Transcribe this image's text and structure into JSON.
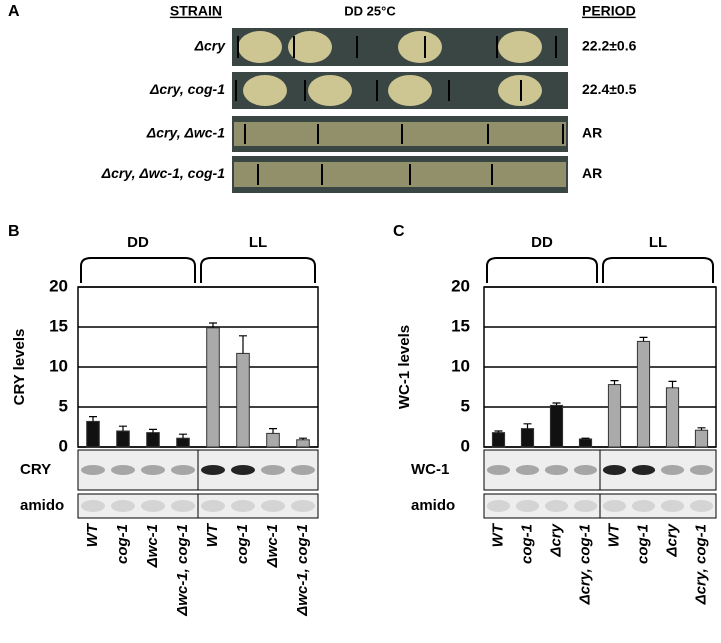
{
  "panel_a": {
    "letter": "A",
    "headers": [
      "STRAIN",
      "DD 25°C",
      "PERIOD"
    ],
    "rows": [
      {
        "strain": "Δcry",
        "period": "22.2±0.6"
      },
      {
        "strain": "Δcry, cog-1",
        "period": "22.4±0.5"
      },
      {
        "strain": "Δcry, Δwc-1",
        "period": "AR"
      },
      {
        "strain": "Δcry, Δwc-1, cog-1",
        "period": "AR"
      }
    ]
  },
  "chart_data": [
    {
      "type": "bar",
      "panel": "B",
      "ylabel": "CRY levels",
      "ylim": [
        0,
        20
      ],
      "yticks": [
        0,
        5,
        10,
        15,
        20
      ],
      "grid": true,
      "categories": [
        "WT",
        "cog-1",
        "Δwc-1",
        "Δwc-1, cog-1",
        "WT",
        "cog-1",
        "Δwc-1",
        "Δwc-1, cog-1"
      ],
      "series": [
        {
          "name": "DD",
          "color": "#111111",
          "values": [
            3.2,
            2.0,
            1.8,
            1.1,
            null,
            null,
            null,
            null
          ],
          "errors": [
            0.6,
            0.6,
            0.4,
            0.5,
            null,
            null,
            null,
            null
          ]
        },
        {
          "name": "LL",
          "color": "#aaaaaa",
          "values": [
            null,
            null,
            null,
            null,
            14.9,
            11.7,
            1.7,
            0.9
          ],
          "errors": [
            null,
            null,
            null,
            null,
            0.6,
            2.2,
            0.6,
            0.2
          ]
        }
      ],
      "blots": [
        "CRY",
        "amido"
      ]
    },
    {
      "type": "bar",
      "panel": "C",
      "ylabel": "WC-1 levels",
      "ylim": [
        0,
        20
      ],
      "yticks": [
        0,
        5,
        10,
        15,
        20
      ],
      "grid": true,
      "categories": [
        "WT",
        "cog-1",
        "Δcry",
        "Δcry, cog-1",
        "WT",
        "cog-1",
        "Δcry",
        "Δcry, cog-1"
      ],
      "series": [
        {
          "name": "DD",
          "color": "#111111",
          "values": [
            1.8,
            2.3,
            5.2,
            1.0,
            null,
            null,
            null,
            null
          ],
          "errors": [
            0.2,
            0.6,
            0.3,
            0.1,
            null,
            null,
            null,
            null
          ]
        },
        {
          "name": "LL",
          "color": "#aaaaaa",
          "values": [
            null,
            null,
            null,
            null,
            7.8,
            13.2,
            7.4,
            2.1
          ],
          "errors": [
            null,
            null,
            null,
            null,
            0.5,
            0.5,
            0.8,
            0.3
          ]
        }
      ],
      "blots": [
        "WC-1",
        "amido"
      ]
    }
  ]
}
